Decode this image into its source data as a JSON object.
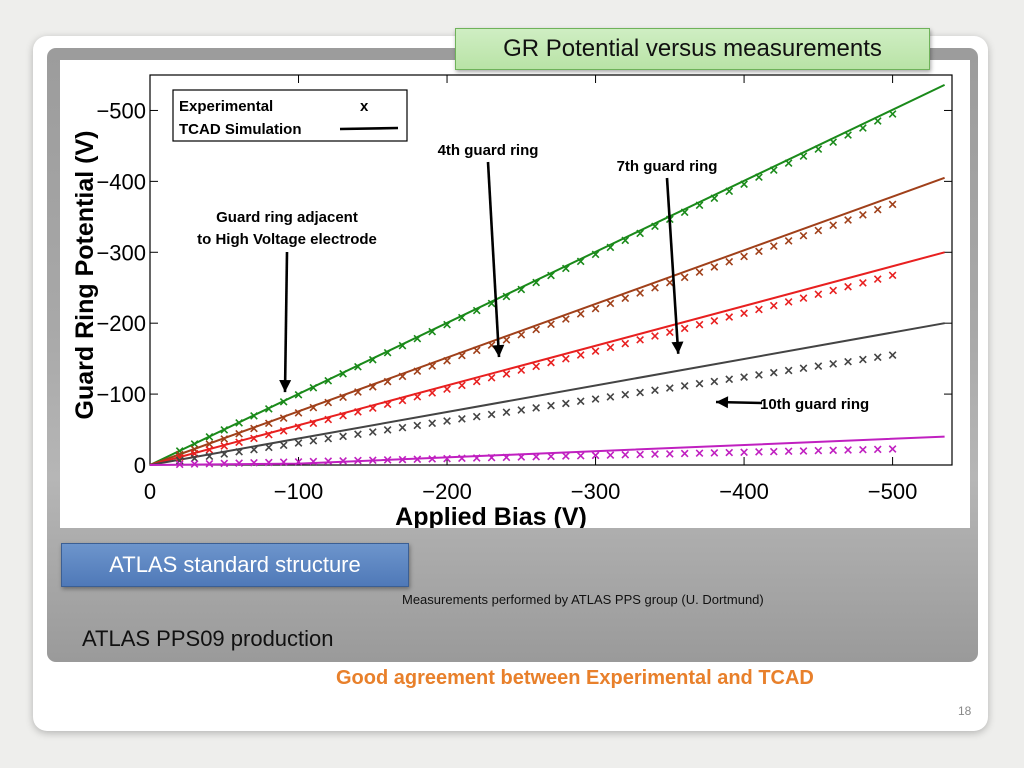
{
  "slide": {
    "title": "GR Potential versus measurements",
    "structure_label": "ATLAS standard structure",
    "credit": "Measurements performed by ATLAS  PPS group (U. Dortmund)",
    "production": "ATLAS PPS09 production",
    "conclusion": "Good agreement between Experimental and TCAD",
    "page_number": "18"
  },
  "chart_data": {
    "type": "line",
    "xlabel": "Applied Bias (V)",
    "ylabel": "Guard Ring Potential (V)",
    "xlim": [
      0,
      -540
    ],
    "ylim": [
      0,
      -550
    ],
    "x_ticks": [
      "0",
      "−100",
      "−200",
      "−300",
      "−400",
      "−500"
    ],
    "x_tick_values": [
      0,
      -100,
      -200,
      -300,
      -400,
      -500
    ],
    "y_ticks": [
      "0",
      "−100",
      "−200",
      "−300",
      "−400",
      "−500"
    ],
    "y_tick_values": [
      0,
      -100,
      -200,
      -300,
      -400,
      -500
    ],
    "legend": {
      "position": "top-left",
      "entries": [
        {
          "label": "Experimental",
          "marker": "x"
        },
        {
          "label": "TCAD Simulation",
          "marker": "line"
        }
      ]
    },
    "annotations": [
      {
        "lines": [
          "4th guard ring"
        ],
        "x": -235,
        "y": -155
      },
      {
        "lines": [
          "7th guard ring"
        ],
        "x": -355,
        "y": -185
      },
      {
        "lines": [
          "Guard ring adjacent",
          "to High Voltage electrode"
        ],
        "x": -95,
        "y": -100
      },
      {
        "lines": [
          "10th guard ring"
        ],
        "x": -390,
        "y": -90
      }
    ],
    "series": [
      {
        "color": "#1a8a1a",
        "sim": [
          [
            0,
            0
          ],
          [
            -535,
            -536
          ]
        ],
        "exp_x_range": [
          -20,
          -500
        ],
        "exp_slope": 0.99,
        "exp_points": 49
      },
      {
        "color": "#a0401a",
        "sim": [
          [
            0,
            0
          ],
          [
            -535,
            -405
          ]
        ],
        "exp_x_range": [
          -20,
          -500
        ],
        "exp_slope": 0.735,
        "exp_points": 49
      },
      {
        "color": "#e82020",
        "sim": [
          [
            0,
            0
          ],
          [
            -535,
            -300
          ]
        ],
        "exp_x_range": [
          -20,
          -500
        ],
        "exp_slope": 0.535,
        "exp_points": 49
      },
      {
        "color": "#444444",
        "sim": [
          [
            0,
            0
          ],
          [
            -535,
            -200
          ]
        ],
        "exp_x_range": [
          -20,
          -500
        ],
        "exp_slope": 0.31,
        "exp_points": 49
      },
      {
        "color": "#c020c0",
        "sim": [
          [
            0,
            0
          ],
          [
            -100,
            -2
          ],
          [
            -535,
            -40
          ]
        ],
        "exp_x_range": [
          -20,
          -500
        ],
        "exp_slope": 0.045,
        "exp_points": 49
      }
    ]
  }
}
